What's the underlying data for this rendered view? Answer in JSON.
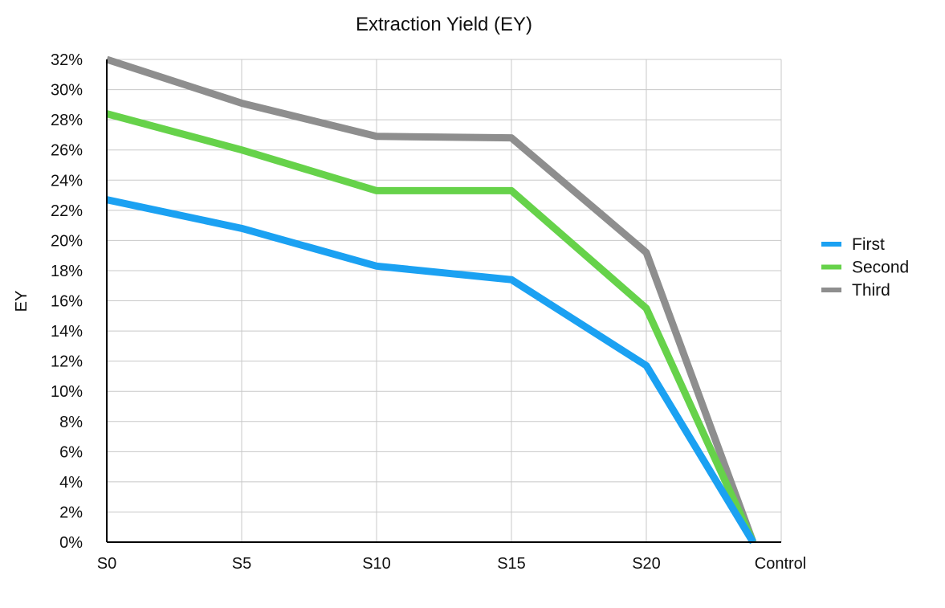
{
  "chart_data": {
    "type": "line",
    "title": "Extraction Yield (EY)",
    "xlabel": "",
    "ylabel": "EY",
    "categories": [
      "S0",
      "S5",
      "S10",
      "S15",
      "S20",
      "Control"
    ],
    "y_ticks": [
      "0%",
      "2%",
      "4%",
      "6%",
      "8%",
      "10%",
      "12%",
      "14%",
      "16%",
      "18%",
      "20%",
      "22%",
      "24%",
      "26%",
      "28%",
      "30%",
      "32%"
    ],
    "ylim": [
      0,
      32
    ],
    "grid": true,
    "legend_position": "right",
    "series": [
      {
        "name": "First",
        "color": "#1ba1f2",
        "values": [
          22.7,
          20.8,
          18.3,
          17.4,
          11.7,
          0
        ]
      },
      {
        "name": "Second",
        "color": "#66d24a",
        "values": [
          28.4,
          26.0,
          23.3,
          23.3,
          15.5,
          0
        ]
      },
      {
        "name": "Third",
        "color": "#8e8e8e",
        "values": [
          32.0,
          29.1,
          26.9,
          26.8,
          19.2,
          0
        ]
      }
    ]
  }
}
